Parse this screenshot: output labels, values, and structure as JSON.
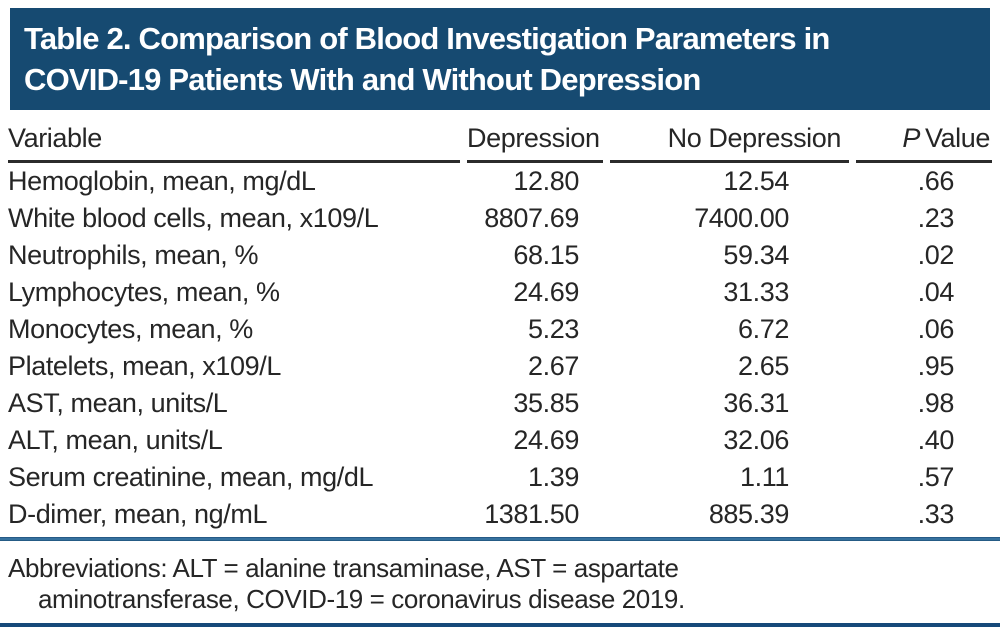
{
  "banner": {
    "title_line1": "Table 2. Comparison of Blood Investigation Parameters in",
    "title_line2": "COVID-19 Patients With and Without Depression"
  },
  "table": {
    "headers": {
      "variable": "Variable",
      "depression": "Depression",
      "no_depression": "No Depression",
      "p_italic": "P",
      "p_rest": "Value"
    },
    "rows": [
      {
        "variable": "Hemoglobin, mean, mg/dL",
        "depression": "12.80",
        "no_depression": "12.54",
        "p_value": ".66"
      },
      {
        "variable": "White blood cells, mean, x109/L",
        "depression": "8807.69",
        "no_depression": "7400.00",
        "p_value": ".23"
      },
      {
        "variable": "Neutrophils, mean, %",
        "depression": "68.15",
        "no_depression": "59.34",
        "p_value": ".02"
      },
      {
        "variable": "Lymphocytes, mean, %",
        "depression": "24.69",
        "no_depression": "31.33",
        "p_value": ".04"
      },
      {
        "variable": "Monocytes, mean, %",
        "depression": "5.23",
        "no_depression": "6.72",
        "p_value": ".06"
      },
      {
        "variable": "Platelets, mean, x109/L",
        "depression": "2.67",
        "no_depression": "2.65",
        "p_value": ".95"
      },
      {
        "variable": "AST, mean, units/L",
        "depression": "35.85",
        "no_depression": "36.31",
        "p_value": ".98"
      },
      {
        "variable": "ALT, mean, units/L",
        "depression": "24.69",
        "no_depression": "32.06",
        "p_value": ".40"
      },
      {
        "variable": "Serum creatinine, mean, mg/dL",
        "depression": "1.39",
        "no_depression": "1.11",
        "p_value": ".57"
      },
      {
        "variable": "D-dimer, mean, ng/mL",
        "depression": "1381.50",
        "no_depression": "885.39",
        "p_value": ".33"
      }
    ]
  },
  "footnote": {
    "line1": "Abbreviations: ALT = alanine transaminase, AST = aspartate",
    "line2": "aminotransferase, COVID-19 = coronavirus disease 2019."
  },
  "colors": {
    "banner_bg": "#164a71",
    "banner_text": "#ffffff",
    "header_rule": "#2b2b2b",
    "divider_rule": "#2e6d9c",
    "bottom_rule": "#16497a",
    "body_text": "#262626"
  }
}
